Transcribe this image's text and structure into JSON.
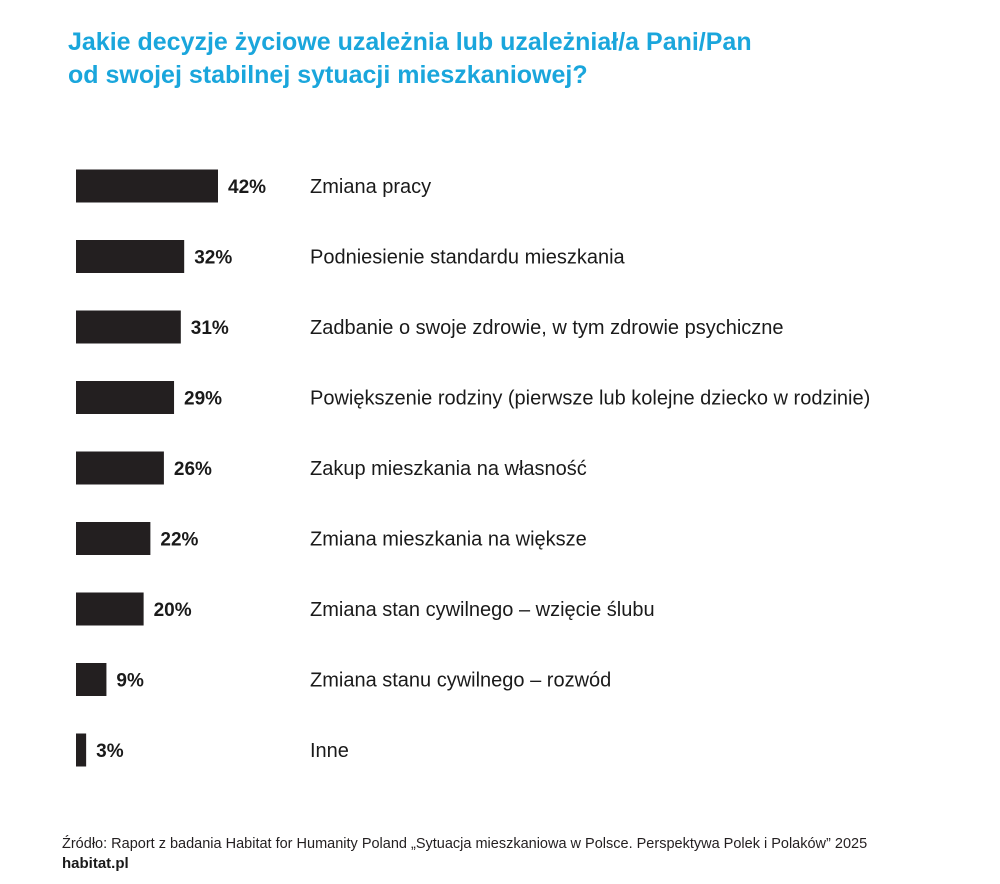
{
  "colors": {
    "title": "#1aa6dc",
    "bar": "#231f20",
    "text": "#1a1a1a",
    "background": "#ffffff"
  },
  "chart_data": {
    "type": "bar",
    "orientation": "horizontal",
    "title_lines": [
      "Jakie decyzje życiowe uzależnia lub uzależniał/a Pani/Pan",
      "od swojej stabilnej sytuacji mieszkaniowej?"
    ],
    "xlabel": "",
    "ylabel": "",
    "grid": false,
    "legend": "none",
    "categories": [
      "Zmiana pracy",
      "Podniesienie standardu mieszkania",
      "Zadbanie o swoje zdrowie, w tym zdrowie psychiczne",
      "Powiększenie rodziny (pierwsze lub kolejne dziecko w rodzinie)",
      "Zakup mieszkania na własność",
      "Zmiana mieszkania na większe",
      "Zmiana stan cywilnego – wzięcie ślubu",
      "Zmiana stanu cywilnego – rozwód",
      "Inne"
    ],
    "values": [
      42,
      32,
      31,
      29,
      26,
      22,
      20,
      9,
      3
    ],
    "value_labels": [
      "42%",
      "32%",
      "31%",
      "29%",
      "26%",
      "22%",
      "20%",
      "9%",
      "3%"
    ],
    "unit": "%",
    "xlim": [
      0,
      100
    ]
  },
  "footer": {
    "source": "Źródło: Raport z badania Habitat for Humanity Poland „Sytuacja mieszkaniowa w Polsce. Perspektywa Polek i Polaków” 2025",
    "site": "habitat.pl"
  }
}
